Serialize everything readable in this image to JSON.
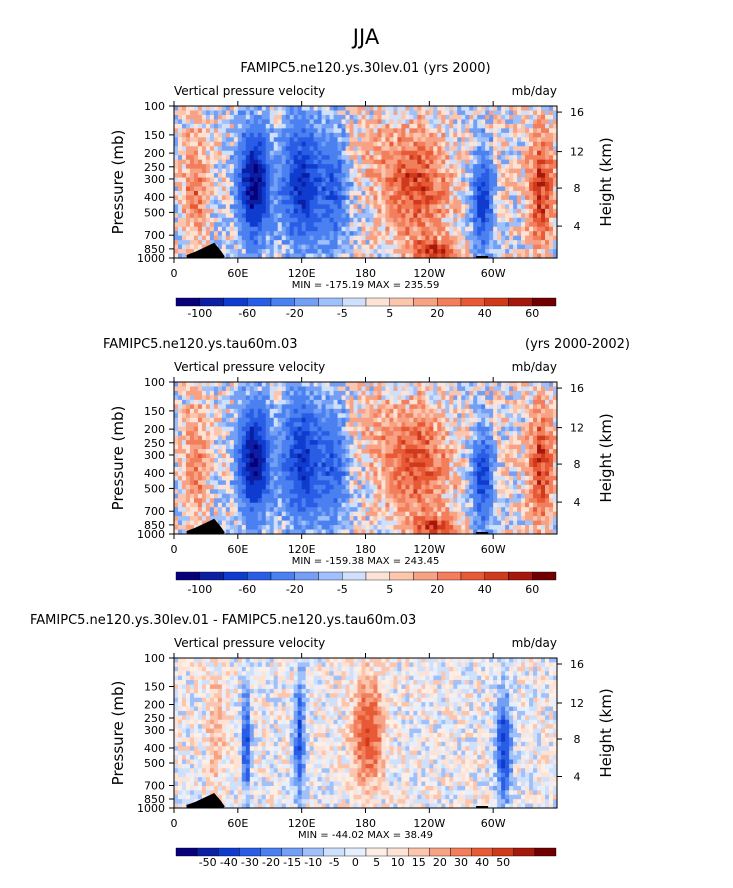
{
  "figure_title": "JJA",
  "palettes": {
    "main": [
      "#08007a",
      "#0a1fa3",
      "#0f3ccf",
      "#2a5de6",
      "#4a80f0",
      "#739ff5",
      "#9fc0fa",
      "#cfe0fc",
      "#fde3d6",
      "#fbc5ae",
      "#f7a284",
      "#f27e5c",
      "#e85a36",
      "#cf3a1c",
      "#a6180d",
      "#700000"
    ],
    "diff": [
      "#08007a",
      "#0a1fa3",
      "#0f3ccf",
      "#2a5de6",
      "#4a80f0",
      "#739ff5",
      "#9fc0fa",
      "#cfe0fc",
      "#e6effd",
      "#fdeee6",
      "#fde3d6",
      "#fbc5ae",
      "#f7a284",
      "#f27e5c",
      "#e85a36",
      "#cf3a1c",
      "#a6180d",
      "#700000"
    ]
  },
  "chart_data": [
    {
      "type": "heatmap",
      "title": "FAMIPC5.ne120.ys.30lev.01 (yrs 2000)",
      "left_title": "",
      "right_title": "",
      "field_label": "Vertical pressure velocity",
      "units": "mb/day",
      "ylabel": "Pressure (mb)",
      "y2label": "Height (km)",
      "pressure_ticks": [
        "100",
        "150",
        "200",
        "250",
        "300",
        "400",
        "500",
        "700",
        "850",
        "1000"
      ],
      "height_ticks": [
        "16",
        "12",
        "8",
        "4"
      ],
      "xtick_labels": [
        "0",
        "60E",
        "120E",
        "180",
        "120W",
        "60W"
      ],
      "stats": "MIN = -175.19   MAX = 235.59",
      "colorbar_labels": [
        "-100",
        "-60",
        "-20",
        "-5",
        "5",
        "20",
        "40",
        "60"
      ],
      "palette": "main",
      "amplitude": 1.0
    },
    {
      "type": "heatmap",
      "title": "",
      "left_title": "FAMIPC5.ne120.ys.tau60m.03",
      "right_title": "(yrs 2000-2002)",
      "field_label": "Vertical pressure velocity",
      "units": "mb/day",
      "ylabel": "Pressure (mb)",
      "y2label": "Height (km)",
      "pressure_ticks": [
        "100",
        "150",
        "200",
        "250",
        "300",
        "400",
        "500",
        "700",
        "850",
        "1000"
      ],
      "height_ticks": [
        "16",
        "12",
        "8",
        "4"
      ],
      "xtick_labels": [
        "0",
        "60E",
        "120E",
        "180",
        "120W",
        "60W"
      ],
      "stats": "MIN = -159.38   MAX = 243.45",
      "colorbar_labels": [
        "-100",
        "-60",
        "-20",
        "-5",
        "5",
        "20",
        "40",
        "60"
      ],
      "palette": "main",
      "amplitude": 0.95
    },
    {
      "type": "heatmap",
      "title": "",
      "left_title": "FAMIPC5.ne120.ys.30lev.01 - FAMIPC5.ne120.ys.tau60m.03",
      "right_title": "",
      "field_label": "Vertical pressure velocity",
      "units": "mb/day",
      "ylabel": "Pressure (mb)",
      "y2label": "Height (km)",
      "pressure_ticks": [
        "100",
        "150",
        "200",
        "250",
        "300",
        "400",
        "500",
        "700",
        "850",
        "1000"
      ],
      "height_ticks": [
        "16",
        "12",
        "8",
        "4"
      ],
      "xtick_labels": [
        "0",
        "60E",
        "120E",
        "180",
        "120W",
        "60W"
      ],
      "stats": "MIN = -44.02   MAX =  38.49",
      "colorbar_labels": [
        "-50",
        "-40",
        "-30",
        "-20",
        "-15",
        "-10",
        "-5",
        "0",
        "5",
        "10",
        "15",
        "20",
        "30",
        "40",
        "50"
      ],
      "palette": "diff",
      "amplitude": 0.35
    }
  ]
}
